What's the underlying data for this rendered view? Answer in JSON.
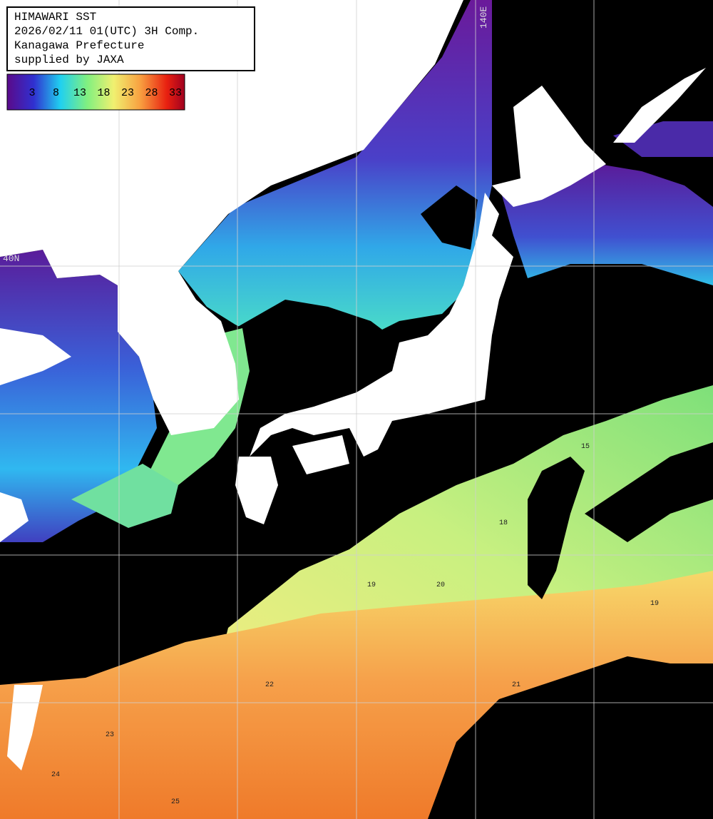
{
  "header": {
    "lines": [
      "HIMAWARI SST",
      "2026/02/11 01(UTC) 3H Comp.",
      "Kanagawa Prefecture",
      "supplied by JAXA"
    ]
  },
  "colorbar": {
    "ticks": [
      3,
      8,
      13,
      18,
      23,
      28,
      33
    ]
  },
  "grid_labels": {
    "longitude": "140E",
    "latitude": "40N"
  },
  "contour_labels": [
    18,
    19,
    20,
    21,
    22,
    23,
    24,
    25,
    19,
    15
  ]
}
